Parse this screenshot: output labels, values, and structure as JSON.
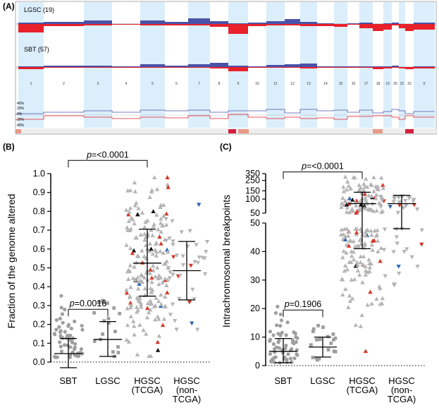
{
  "panelA": {
    "label": "(A)",
    "track1_label": "LGSC (19)",
    "track2_label": "SBT (57)",
    "chromosomes": [
      "1",
      "2",
      "3",
      "4",
      "5",
      "6",
      "7",
      "8",
      "9",
      "10",
      "11",
      "12",
      "13",
      "14",
      "15",
      "16",
      "17",
      "18",
      "19",
      "20",
      "21",
      "22",
      "X"
    ],
    "chrom_bounds": [
      26,
      62,
      119,
      159,
      199,
      234,
      267,
      298,
      324,
      352,
      378,
      404,
      426,
      450,
      474,
      493,
      510,
      529,
      544,
      556,
      566,
      575,
      587,
      617
    ],
    "pct_labels": [
      "40%",
      "20%",
      "0%",
      "20%",
      "40%"
    ],
    "colors": {
      "gain": "#4a52a8",
      "loss": "#e8212a",
      "shade": "#dbeefb",
      "lgsc_bar": "#8a9bd1",
      "sbt_bar": "#d9564d"
    }
  },
  "panelB": {
    "label": "(B)",
    "chart_data": {
      "type": "scatter",
      "ylabel": "Fraction of the genome altered",
      "ylim": [
        0,
        1.0
      ],
      "yticks": [
        "0.0",
        "0.1",
        "0.2",
        "0.3",
        "0.4",
        "0.5",
        "0.6",
        "0.7",
        "0.8",
        "0.9",
        "1.0"
      ],
      "categories": [
        "SBT",
        "LGSC",
        "HGSC\n(TCGA)",
        "HGSC\n(non-\nTCGA)"
      ],
      "category_lines": [
        [
          "SBT"
        ],
        [
          "LGSC"
        ],
        [
          "HGSC",
          "(TCGA)"
        ],
        [
          "HGSC",
          "(non-",
          "TCGA)"
        ]
      ],
      "groups": [
        {
          "name": "SBT",
          "median": 0.045,
          "lower": -0.03,
          "upper": 0.125,
          "n": 57
        },
        {
          "name": "LGSC",
          "median": 0.12,
          "lower": 0.03,
          "upper": 0.215,
          "n": 19
        },
        {
          "name": "HGSC (TCGA)",
          "median": 0.525,
          "lower": 0.35,
          "upper": 0.705,
          "n": 200
        },
        {
          "name": "HGSC (non-TCGA)",
          "median": 0.485,
          "lower": 0.33,
          "upper": 0.64,
          "n": 40
        }
      ],
      "comparisons": [
        {
          "pair": [
            0,
            1
          ],
          "label": "p=0.0016",
          "level": 0.28
        },
        {
          "pair": [
            0,
            2
          ],
          "label": "p=<0.0001",
          "level": 1.07
        }
      ]
    }
  },
  "panelC": {
    "label": "(C)",
    "chart_data": {
      "type": "scatter",
      "ylabel": "Intrachromosomal breakpoints",
      "ylim": [
        0,
        350
      ],
      "axis_break": 50,
      "yticks_upper": [
        "350",
        "250",
        "150",
        "100",
        "50"
      ],
      "yticks_lower": [
        "50",
        "40",
        "30",
        "20",
        "10",
        "0"
      ],
      "categories": [
        "SBT",
        "LGSC",
        "HGSC\n(TCGA)",
        "HGSC\n(non-\nTCGA)"
      ],
      "category_lines": [
        [
          "SBT"
        ],
        [
          "LGSC"
        ],
        [
          "HGSC",
          "(TCGA)"
        ],
        [
          "HGSC",
          "(non-",
          "TCGA)"
        ]
      ],
      "groups": [
        {
          "name": "SBT",
          "median": 5,
          "lower": 1,
          "upper": 9.5,
          "n": 57
        },
        {
          "name": "LGSC",
          "median": 6.5,
          "lower": 3,
          "upper": 10,
          "n": 19
        },
        {
          "name": "HGSC (TCGA)",
          "median": 80,
          "lower": 41,
          "upper": 140,
          "n": 200
        },
        {
          "name": "HGSC (non-TCGA)",
          "median": 80,
          "lower": 48,
          "upper": 120,
          "n": 40
        }
      ],
      "comparisons": [
        {
          "pair": [
            0,
            1
          ],
          "label": "p=0.1906",
          "level": 19.5
        },
        {
          "pair": [
            0,
            2
          ],
          "label": "p=<0.0001",
          "level": 380
        }
      ]
    }
  }
}
